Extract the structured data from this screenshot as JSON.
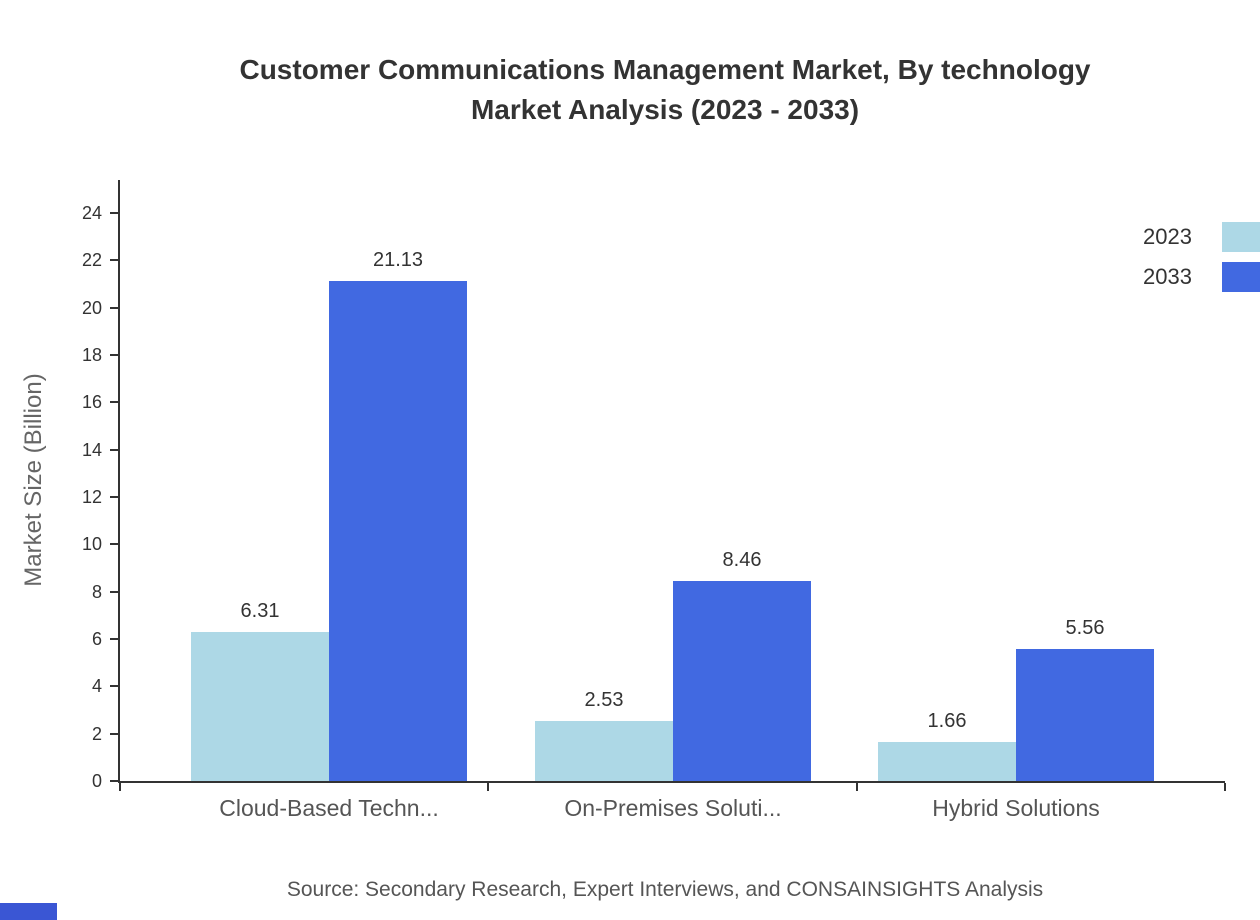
{
  "chart_data": {
    "type": "bar",
    "title": "Customer Communications Management Market, By technology Market Analysis (2023 - 2033)",
    "title_lines": [
      "Customer Communications Management Market, By technology",
      "Market Analysis (2023 - 2033)"
    ],
    "categories": [
      "Cloud-Based Techn...",
      "On-Premises Soluti...",
      "Hybrid Solutions"
    ],
    "series": [
      {
        "name": "2023",
        "color": "#ADD8E6",
        "values": [
          6.31,
          2.53,
          1.66
        ]
      },
      {
        "name": "2033",
        "color": "#4169E1",
        "values": [
          21.13,
          8.46,
          5.56
        ]
      }
    ],
    "value_labels": [
      "6.31",
      "21.13",
      "2.53",
      "8.46",
      "1.66",
      "5.56"
    ],
    "xlabel": "",
    "ylabel": "Market Size (Billion)",
    "ylim": [
      0,
      25.4
    ],
    "yticks": [
      0,
      2,
      4,
      6,
      8,
      10,
      12,
      14,
      16,
      18,
      20,
      22,
      24
    ],
    "grid": false,
    "legend_position": "top-right"
  },
  "source": "Source: Secondary Research, Expert Interviews, and CONSAINSIGHTS Analysis",
  "colors": {
    "axis": "#333333",
    "series_2023": "#ADD8E6",
    "series_2033": "#4169E1",
    "watermark": "#3A56D4"
  }
}
